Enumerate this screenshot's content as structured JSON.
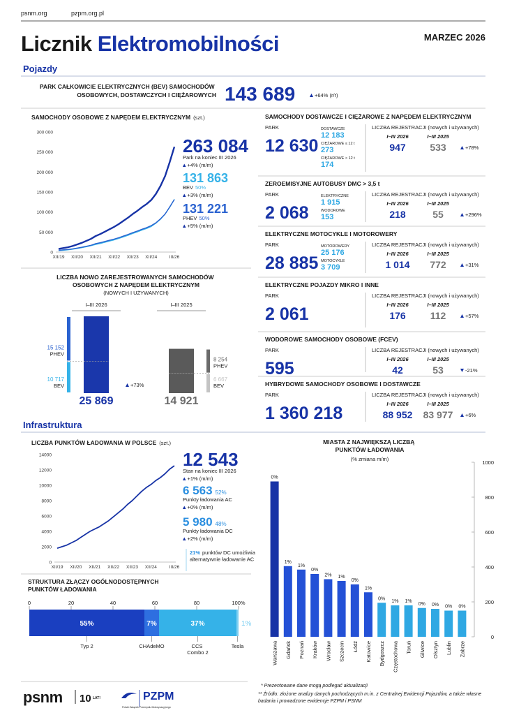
{
  "header": {
    "links": [
      "psnm.org",
      "pzpm.org.pl"
    ],
    "title_part1": "Licznik",
    "title_part2": "Elektromobilności",
    "date": "MARZEC 2026"
  },
  "vehicles": {
    "section": "Pojazdy",
    "total": {
      "label": "PARK CAŁKOWICIE ELEKTRYCZNYCH (BEV) SAMOCHODÓW OSOBOWYCH, DOSTAWCZYCH I CIĘŻAROWYCH",
      "value": "143 689",
      "change": "+64% (r/r)"
    },
    "panels": [
      {
        "title": "SAMOCHODY DOSTAWCZE I CIĘŻAROWE Z NAPĘDEM ELEKTRYCZNYM",
        "park_label": "PARK",
        "park": "12 630",
        "breakdown": [
          {
            "label": "DOSTAWCZE",
            "value": "12 183"
          },
          {
            "label": "CIĘŻAROWE ≤ 12 t",
            "value": "273"
          },
          {
            "label": "CIĘŻAROWE > 12 t",
            "value": "174"
          }
        ],
        "reg_title": "LICZBA REJESTRACJI (nowych i używanych)",
        "periods": [
          "I–III 2026",
          "I–III 2025"
        ],
        "registrations": [
          "947",
          "533"
        ],
        "change": "+78%"
      },
      {
        "title": "ZEROEMISYJNE AUTOBUSY DMC > 3,5 t",
        "park_label": "PARK",
        "park": "2 068",
        "breakdown": [
          {
            "label": "ELEKTRYCZNE",
            "value": "1 915"
          },
          {
            "label": "WODOROWE",
            "value": "153"
          }
        ],
        "reg_title": "LICZBA REJESTRACJI (nowych i używanych)",
        "periods": [
          "I–III 2026",
          "I–III 2025"
        ],
        "registrations": [
          "218",
          "55"
        ],
        "change": "+296%"
      },
      {
        "title": "ELEKTRYCZNE MOTOCYKLE I MOTOROWERY",
        "park_label": "PARK",
        "park": "28 885",
        "breakdown": [
          {
            "label": "MOTOROWERY",
            "value": "25 176"
          },
          {
            "label": "MOTOCYKLE",
            "value": "3 709"
          }
        ],
        "reg_title": "LICZBA REJESTRACJI (nowych i używanych)",
        "periods": [
          "I–III 2026",
          "I–III 2025"
        ],
        "registrations": [
          "1 014",
          "772"
        ],
        "change": "+31%"
      },
      {
        "title": "ELEKTRYCZNE POJAZDY MIKRO I INNE",
        "park_label": "PARK",
        "park": "2 061",
        "reg_title": "LICZBA REJESTRACJI (nowych i używanych)",
        "periods": [
          "I–III 2026",
          "I–III 2025"
        ],
        "registrations": [
          "176",
          "112"
        ],
        "change": "+57%"
      },
      {
        "title": "WODOROWE SAMOCHODY OSOBOWE (FCEV)",
        "park_label": "PARK",
        "park": "595",
        "reg_title": "LICZBA REJESTRACJI (nowych i używanych)",
        "periods": [
          "I–III 2026",
          "I–III 2025"
        ],
        "registrations": [
          "42",
          "53"
        ],
        "change": "-21%"
      },
      {
        "title": "HYBRYDOWE SAMOCHODY OSOBOWE I DOSTAWCZE",
        "park_label": "PARK",
        "park": "1 360 218",
        "reg_title": "LICZBA REJESTRACJI (nowych i używanych)",
        "periods": [
          "I–III 2026",
          "I–III 2025"
        ],
        "registrations": [
          "88 952",
          "83 977"
        ],
        "change": "+6%"
      }
    ]
  },
  "infrastructure": {
    "section": "Infrastruktura"
  },
  "chart_data": [
    {
      "type": "line",
      "title": "SAMOCHODY OSOBOWE Z NAPĘDEM ELEKTRYCZNYM",
      "unit": "(szt.)",
      "categories": [
        "XII/19",
        null,
        null,
        null,
        "XII/20",
        null,
        null,
        null,
        "XII/21",
        null,
        null,
        null,
        "XII/22",
        null,
        null,
        null,
        "XII/23",
        null,
        null,
        null,
        "XII/24",
        null,
        null,
        null,
        null,
        "III/26"
      ],
      "ylim": [
        0,
        300000
      ],
      "yticks": [
        {
          "value": 0,
          "label": "0"
        },
        {
          "value": 50000,
          "label": "50 000"
        },
        {
          "value": 100000,
          "label": "100 000"
        },
        {
          "value": 150000,
          "label": "150 000"
        },
        {
          "value": 200000,
          "label": "200 000"
        },
        {
          "value": 250000,
          "label": "250 000"
        },
        {
          "value": 300000,
          "label": "300 000"
        }
      ],
      "grid": false,
      "series": [
        {
          "color": "#1733a6",
          "values": [
            8000,
            10000,
            12000,
            15000,
            19000,
            23000,
            28000,
            33000,
            40000,
            45000,
            51000,
            57000,
            63000,
            70000,
            78000,
            86000,
            95000,
            103000,
            112000,
            120000,
            130000,
            145000,
            165000,
            190000,
            225000,
            263084
          ],
          "callout": {
            "value": "263 084",
            "label": "Park na koniec III 2026",
            "change": "+4% (m/m)"
          }
        },
        {
          "name": "BEV",
          "color": "#35b2e8",
          "values": [
            3500,
            4500,
            5500,
            7000,
            9000,
            11000,
            13500,
            16000,
            19000,
            21500,
            24500,
            27500,
            30500,
            34000,
            38000,
            42000,
            46500,
            50500,
            55000,
            59000,
            64000,
            72000,
            82000,
            95000,
            112000,
            131863
          ],
          "callout": {
            "value": "131 863",
            "share": "50%",
            "change": "+3% (m/m)"
          }
        },
        {
          "name": "PHEV",
          "color": "#2a62d0",
          "values": [
            4500,
            5500,
            6500,
            8000,
            10000,
            12000,
            14500,
            17000,
            21000,
            23500,
            26500,
            29500,
            32500,
            36000,
            40000,
            44000,
            48500,
            52500,
            57000,
            61000,
            66000,
            73000,
            83000,
            95000,
            113000,
            131221
          ],
          "callout": {
            "value": "131 221",
            "share": "50%",
            "change": "+5% (m/m)"
          }
        }
      ]
    },
    {
      "type": "stacked_bar",
      "title": "LICZBA NOWO ZAREJESTROWANYCH SAMOCHODÓW OSOBOWYCH Z NAPĘDEM ELEKTRYCZNYM",
      "subtitle": "(NOWYCH I UŻYWANYCH)",
      "categories": [
        "I–III 2026",
        "I–III 2025"
      ],
      "bar_colors": [
        "#1a37ab",
        "#5a5a5a"
      ],
      "series": [
        {
          "name": "BEV",
          "values": [
            10717,
            6667
          ],
          "value_labels": [
            "10 717",
            "6 667"
          ],
          "colors": [
            "#35b2e8",
            "#c4c4c4"
          ]
        },
        {
          "name": "PHEV",
          "values": [
            15152,
            8254
          ],
          "value_labels": [
            "15 152",
            "8 254"
          ],
          "colors": [
            "#2a62d0",
            "#6b6b6b"
          ]
        }
      ],
      "totals": [
        "25 869",
        "14 921"
      ],
      "total_colors": [
        "#1733a6",
        "#6b6b6b"
      ],
      "change": "+73%"
    },
    {
      "type": "line",
      "title": "LICZBA PUNKTÓW ŁADOWANIA W POLSCE",
      "unit": "(szt.)",
      "categories": [
        "XII/19",
        null,
        null,
        null,
        "XII/20",
        null,
        null,
        null,
        "XII/21",
        null,
        null,
        null,
        "XII/22",
        null,
        null,
        null,
        "XII/23",
        null,
        null,
        null,
        "XII/24",
        null,
        null,
        null,
        null,
        "III/26"
      ],
      "ylim": [
        0,
        14000
      ],
      "yticks": [
        0,
        2000,
        4000,
        6000,
        8000,
        10000,
        12000,
        14000
      ],
      "grid": false,
      "series": [
        {
          "color": "#1733a6",
          "values": [
            1800,
            2000,
            2200,
            2500,
            2800,
            3200,
            3600,
            4000,
            4300,
            4600,
            5000,
            5400,
            5900,
            6400,
            6900,
            7500,
            8000,
            8600,
            9200,
            9700,
            10100,
            10600,
            11000,
            11500,
            12100,
            12543
          ],
          "callout": {
            "value": "12 543",
            "label": "Stan na koniec III 2026",
            "change": "+1% (m/m)"
          }
        }
      ],
      "breakdown": [
        {
          "value": "6 563",
          "share": "52%",
          "label": "Punkty ładowania AC",
          "change": "+0% (m/m)",
          "color": "#2b8fe0"
        },
        {
          "value": "5 980",
          "share": "48%",
          "label": "Punkty ładowania DC",
          "change": "+2% (m/m)",
          "color": "#2b8fe0"
        }
      ],
      "note": {
        "highlight": "21%",
        "text": "punktów DC umożliwia alternatywnie ładowanie AC"
      }
    },
    {
      "type": "stacked_hbar",
      "title": "STRUKTURA ZŁĄCZY OGÓLNODOSTĘPNYCH PUNKTÓW ŁADOWANIA",
      "xlim": [
        0,
        100
      ],
      "xticks": [
        0,
        20,
        40,
        60,
        80,
        {
          "value": 100,
          "label": "100%"
        }
      ],
      "categories": [
        "Typ 2",
        "CHAdeMO",
        "CCS Combo 2",
        "Tesla"
      ],
      "values": [
        55,
        7,
        37,
        1
      ],
      "value_labels": [
        "55%",
        "7%",
        "37%",
        "1%"
      ],
      "colors": [
        "#1a3fc0",
        "#2e6fe0",
        "#35b2e8",
        "#7fd0f2"
      ]
    },
    {
      "type": "bar",
      "title": "MIASTA Z NAJWIĘKSZĄ LICZBĄ PUNKTÓW ŁADOWANIA",
      "subtitle": "(% zmiana m/m)",
      "categories": [
        "Warszawa",
        "Gdańsk",
        "Poznań",
        "Kraków",
        "Wrocław",
        "Szczecin",
        "Łódź",
        "Katowice",
        "Bydgoszcz",
        "Częstochowa",
        "Toruń",
        "Gliwice",
        "Olsztyn",
        "Lublin",
        "Zabrze"
      ],
      "values": [
        890,
        405,
        385,
        360,
        330,
        320,
        300,
        255,
        195,
        180,
        180,
        165,
        160,
        150,
        150
      ],
      "change_labels": [
        "0%",
        "1%",
        "1%",
        "0%",
        "2%",
        "1%",
        "0%",
        "1%",
        "0%",
        "1%",
        "1%",
        "0%",
        "0%",
        "0%",
        "0%"
      ],
      "colors": [
        "#1733a6",
        "#2451d6",
        "#2451d6",
        "#2451d6",
        "#2451d6",
        "#2451d6",
        "#2451d6",
        "#2451d6",
        "#2fa8e3",
        "#2fa8e3",
        "#2fa8e3",
        "#2fa8e3",
        "#2fa8e3",
        "#2fa8e3",
        "#2fa8e3"
      ],
      "ylim": [
        0,
        1000
      ],
      "yticks": [
        0,
        200,
        400,
        600,
        800,
        1000
      ],
      "y_axis_side": "right",
      "grid": false
    }
  ],
  "footer": {
    "notes": [
      "* Prezentowane dane mogą podlegać aktualizacji",
      "** Źródło: złożone analizy danych pochodzących m.in. z Centralnej Ewidencji Pojazdów, a także własne badania i prowadzone ewidencje PZPM i PSNM"
    ],
    "logo_psnm": "psnm",
    "logo_anniversary": "10",
    "logo_anniversary_unit": "LAT!",
    "logo_pzpm": "PZPM",
    "logo_pzpm_name": "Polski Związek Przemysłu Motoryzacyjnego"
  }
}
